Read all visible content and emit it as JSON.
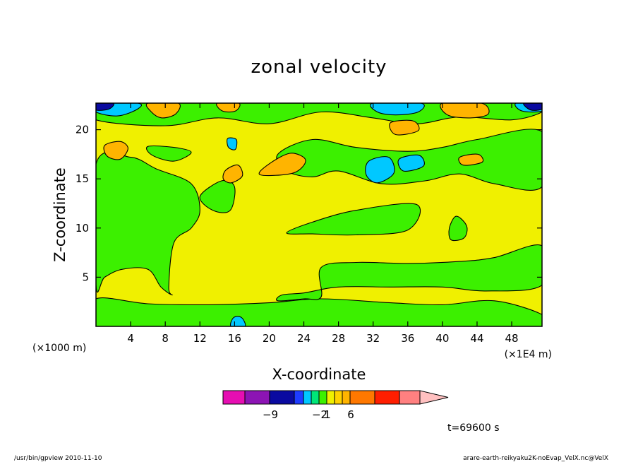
{
  "chart_data": {
    "type": "heatmap",
    "title": "zonal velocity",
    "xlabel": "X-coordinate",
    "ylabel": "Z-coordinate",
    "x_unit_left": "(×1000 m)",
    "x_unit_right": "(×1E4 m)",
    "xlim": [
      0,
      51.5
    ],
    "ylim": [
      0,
      22.7
    ],
    "x_ticks": [
      4,
      8,
      12,
      16,
      20,
      24,
      28,
      32,
      36,
      40,
      44,
      48
    ],
    "y_ticks": [
      5,
      10,
      15,
      20
    ],
    "colorbar": {
      "colors": [
        "#e60eb2",
        "#8c14b4",
        "#0a0aa0",
        "#1e3cff",
        "#00c8ff",
        "#00e678",
        "#3cf000",
        "#f0f000",
        "#ffd200",
        "#ffb400",
        "#ff7800",
        "#ff1e00",
        "#ff8080",
        "#ffc0c0"
      ],
      "labels": [
        {
          "text": "−9",
          "index": 2
        },
        {
          "text": "−2",
          "index": 6
        },
        {
          "text": "1",
          "index": 7
        },
        {
          "text": "6",
          "index": 10
        }
      ]
    },
    "time_label": "t=69600 s",
    "field": {
      "base_color": "#f0f000",
      "regions": [
        {
          "color": "#3cf000",
          "pts": [
            [
              0,
              0
            ],
            [
              51.5,
              0
            ],
            [
              51.5,
              1.2
            ],
            [
              46,
              2.6
            ],
            [
              40,
              2.2
            ],
            [
              34,
              2.4
            ],
            [
              26,
              2.8
            ],
            [
              20,
              2.4
            ],
            [
              13,
              2.2
            ],
            [
              6,
              2.3
            ],
            [
              0,
              2.8
            ]
          ]
        },
        {
          "color": "#3cf000",
          "pts": [
            [
              21,
              2.6
            ],
            [
              24,
              2.8
            ],
            [
              26,
              3.0
            ],
            [
              26,
              6.0
            ],
            [
              30,
              6.5
            ],
            [
              36,
              6.4
            ],
            [
              42,
              6.6
            ],
            [
              46,
              7.0
            ],
            [
              51.5,
              8.2
            ],
            [
              51.5,
              4.2
            ],
            [
              45,
              3.6
            ],
            [
              40,
              4.0
            ],
            [
              34,
              4.0
            ],
            [
              28,
              4.0
            ],
            [
              24,
              3.4
            ],
            [
              21.5,
              3.2
            ]
          ]
        },
        {
          "color": "#3cf000",
          "pts": [
            [
              0,
              16.5
            ],
            [
              4,
              17.2
            ],
            [
              7,
              16.0
            ],
            [
              11,
              14.5
            ],
            [
              12,
              11.8
            ],
            [
              11,
              10.0
            ],
            [
              9,
              8.5
            ],
            [
              8.4,
              4.0
            ],
            [
              8.8,
              3.2
            ],
            [
              7.5,
              4.0
            ],
            [
              6,
              5.8
            ],
            [
              3,
              5.8
            ],
            [
              1,
              5.0
            ],
            [
              0,
              4.2
            ]
          ]
        },
        {
          "color": "#3cf000",
          "pts": [
            [
              12,
              13.2
            ],
            [
              14.5,
              14.8
            ],
            [
              16,
              14.2
            ],
            [
              15.5,
              11.8
            ],
            [
              13.5,
              11.8
            ]
          ]
        },
        {
          "color": "#3cf000",
          "pts": [
            [
              22,
              9.5
            ],
            [
              25,
              10.6
            ],
            [
              30,
              11.8
            ],
            [
              37,
              12.4
            ],
            [
              36,
              9.8
            ],
            [
              30,
              9.3
            ],
            [
              25,
              9.4
            ]
          ]
        },
        {
          "color": "#3cf000",
          "pts": [
            [
              21,
              17.5
            ],
            [
              25,
              19.0
            ],
            [
              30,
              18.2
            ],
            [
              36,
              17.8
            ],
            [
              40,
              18.2
            ],
            [
              44,
              19.0
            ],
            [
              51.5,
              19.8
            ],
            [
              51.5,
              14.2
            ],
            [
              46,
              14.5
            ],
            [
              42,
              15.5
            ],
            [
              38,
              14.8
            ],
            [
              33,
              14.5
            ],
            [
              28,
              15.8
            ],
            [
              25,
              15.2
            ],
            [
              22,
              15.8
            ]
          ]
        },
        {
          "color": "#3cf000",
          "pts": [
            [
              6,
              18.3
            ],
            [
              9,
              18.2
            ],
            [
              11,
              17.7
            ],
            [
              9,
              16.8
            ],
            [
              6.5,
              17.4
            ]
          ]
        },
        {
          "color": "#3cf000",
          "pts": [
            [
              0,
              21.0
            ],
            [
              8,
              20.4
            ],
            [
              14,
              21.2
            ],
            [
              20,
              20.6
            ],
            [
              26,
              21.8
            ],
            [
              32,
              21.2
            ],
            [
              37,
              20.6
            ],
            [
              42,
              21.3
            ],
            [
              48,
              21.0
            ],
            [
              51.5,
              21.8
            ],
            [
              51.5,
              22.7
            ],
            [
              0,
              22.7
            ]
          ]
        },
        {
          "color": "#3cf000",
          "pts": [
            [
              41,
              8.8
            ],
            [
              42.5,
              9.0
            ],
            [
              42.8,
              10.2
            ],
            [
              41.6,
              11.2
            ],
            [
              40.8,
              10.0
            ]
          ]
        },
        {
          "color": "#ffb400",
          "pts": [
            [
              6,
              22.7
            ],
            [
              9.5,
              22.7
            ],
            [
              9.2,
              21.6
            ],
            [
              7.6,
              21.2
            ],
            [
              6.4,
              21.8
            ]
          ]
        },
        {
          "color": "#ffb400",
          "pts": [
            [
              14,
              22.7
            ],
            [
              16.5,
              22.7
            ],
            [
              16.1,
              21.9
            ],
            [
              14.6,
              21.9
            ]
          ]
        },
        {
          "color": "#ffb400",
          "pts": [
            [
              1,
              18.4
            ],
            [
              2.8,
              18.8
            ],
            [
              3.7,
              18.1
            ],
            [
              2.8,
              17.0
            ],
            [
              1.3,
              17.3
            ]
          ]
        },
        {
          "color": "#ffb400",
          "pts": [
            [
              15,
              15.9
            ],
            [
              16.4,
              16.4
            ],
            [
              16.9,
              15.3
            ],
            [
              15.6,
              14.6
            ],
            [
              14.7,
              15.0
            ]
          ]
        },
        {
          "color": "#ffb400",
          "pts": [
            [
              19,
              15.4
            ],
            [
              22.8,
              15.6
            ],
            [
              24.2,
              16.9
            ],
            [
              22.4,
              17.6
            ],
            [
              19.8,
              16.4
            ]
          ]
        },
        {
          "color": "#ffb400",
          "pts": [
            [
              34,
              20.7
            ],
            [
              36.6,
              20.9
            ],
            [
              37.2,
              19.9
            ],
            [
              34.6,
              19.5
            ]
          ]
        },
        {
          "color": "#ffb400",
          "pts": [
            [
              40,
              22.7
            ],
            [
              44.5,
              22.7
            ],
            [
              45.3,
              21.6
            ],
            [
              43.2,
              21.2
            ],
            [
              40.6,
              21.5
            ]
          ]
        },
        {
          "color": "#ffb400",
          "pts": [
            [
              42,
              17.2
            ],
            [
              44.1,
              17.5
            ],
            [
              44.6,
              16.7
            ],
            [
              42.4,
              16.4
            ]
          ]
        },
        {
          "color": "#00c8ff",
          "pts": [
            [
              0,
              21.8
            ],
            [
              2.5,
              21.4
            ],
            [
              4.8,
              22.1
            ],
            [
              4.8,
              22.7
            ],
            [
              0,
              22.7
            ]
          ]
        },
        {
          "color": "#00c8ff",
          "pts": [
            [
              32,
              22.7
            ],
            [
              37.5,
              22.7
            ],
            [
              37.2,
              21.8
            ],
            [
              34.6,
              21.5
            ],
            [
              32.5,
              21.8
            ]
          ]
        },
        {
          "color": "#00c8ff",
          "pts": [
            [
              31.5,
              16.8
            ],
            [
              33.8,
              17.2
            ],
            [
              34.4,
              15.6
            ],
            [
              32.5,
              14.6
            ],
            [
              31.2,
              15.4
            ]
          ]
        },
        {
          "color": "#00c8ff",
          "pts": [
            [
              35,
              17.0
            ],
            [
              37.3,
              17.4
            ],
            [
              37.8,
              16.3
            ],
            [
              35.5,
              15.8
            ]
          ]
        },
        {
          "color": "#00c8ff",
          "pts": [
            [
              15.2,
              19.1
            ],
            [
              16.2,
              19.0
            ],
            [
              16.1,
              18.0
            ],
            [
              15.3,
              18.2
            ]
          ]
        },
        {
          "color": "#00c8ff",
          "pts": [
            [
              15.6,
              0
            ],
            [
              17.2,
              0
            ],
            [
              16.8,
              0.9
            ],
            [
              15.9,
              0.9
            ]
          ]
        },
        {
          "color": "#00c8ff",
          "pts": [
            [
              48.5,
              22.7
            ],
            [
              51.5,
              22.7
            ],
            [
              51.5,
              21.9
            ],
            [
              49.2,
              21.9
            ]
          ]
        },
        {
          "color": "#0a0aa0",
          "pts": [
            [
              0,
              22.7
            ],
            [
              2,
              22.7
            ],
            [
              1.5,
              22.1
            ],
            [
              0,
              22.0
            ]
          ]
        },
        {
          "color": "#0a0aa0",
          "pts": [
            [
              49.4,
              22.7
            ],
            [
              51.5,
              22.7
            ],
            [
              51.5,
              22.1
            ],
            [
              50.2,
              22.0
            ]
          ]
        }
      ]
    }
  },
  "footer": {
    "left": "/usr/bin/gpview   2010-11-10",
    "right": "arare-earth-reikyaku2K-noEvap_VelX.nc@VelX"
  }
}
